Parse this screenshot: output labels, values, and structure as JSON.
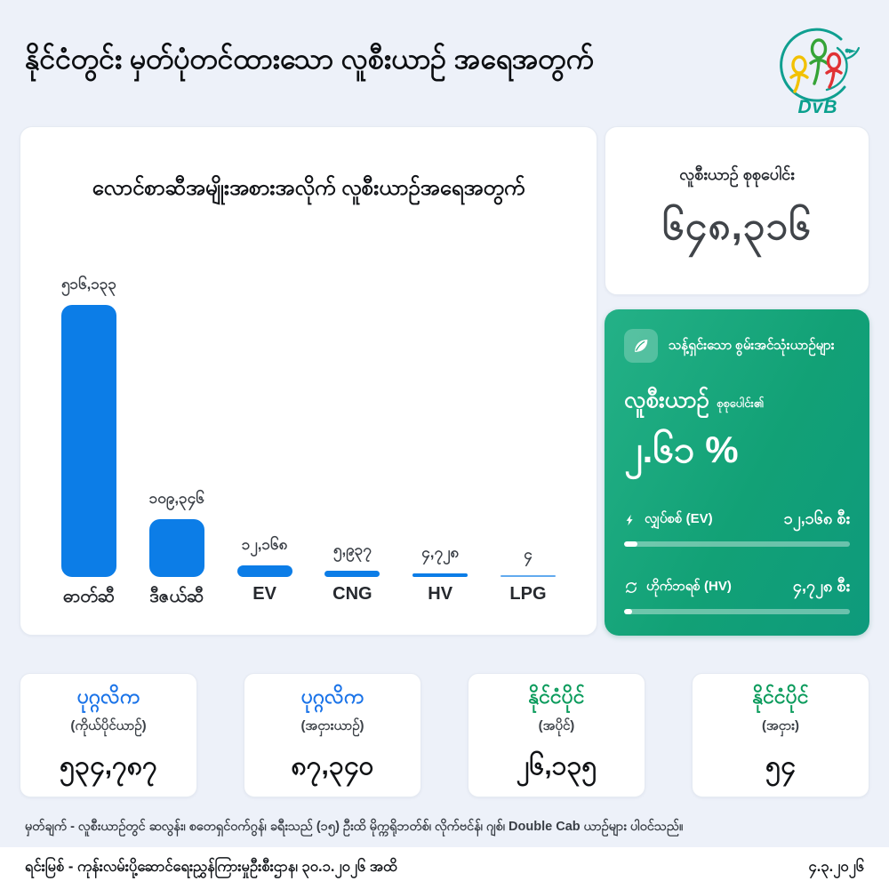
{
  "page": {
    "title": "နိုင်ငံတွင်း မှတ်ပုံတင်ထားသော လူစီးယာဉ် အရေအတွက်",
    "logo_text": "DvB",
    "background": "#edf1f9"
  },
  "chart_data": {
    "type": "bar",
    "title": "လောင်စာဆီအမျိုးအစားအလိုက် လူစီးယာဉ်အရေအတွက်",
    "categories": [
      "ဓာတ်ဆီ",
      "ဒီဇယ်ဆီ",
      "EV",
      "CNG",
      "HV",
      "LPG"
    ],
    "values": [
      516133,
      109346,
      12168,
      5937,
      4728,
      4
    ],
    "display_values": [
      "၅၁၆,၁၃၃",
      "၁၀၉,၃၄၆",
      "၁၂,၁၆၈",
      "၅,၉၃၇",
      "၄,၇၂၈",
      "၄"
    ],
    "bar_color": "#0c7de7",
    "ylim": [
      0,
      516133
    ],
    "grid": false,
    "legend": false,
    "value_labels": true
  },
  "total_card": {
    "label": "လူစီးယာဉ် စုစုပေါင်း",
    "value": "၆၄၈,၃၁၆"
  },
  "eco_card": {
    "header": "သန့်ရှင်းသော စွမ်းအင်သုံးယာဉ်များ",
    "subject": "လူစီးယာဉ်",
    "subject_suffix": "စုစုပေါင်း၏",
    "percent": "၂.၆၁ %",
    "accent_gradient": [
      "#24b187",
      "#0e9a7c"
    ],
    "rows": [
      {
        "icon": "lightning-icon",
        "label": "လျှပ်စစ် (EV)",
        "value": "၁၂,၁၆၈ စီး",
        "fill_pct": 6
      },
      {
        "icon": "hybrid-icon",
        "label": "ဟိုက်ဘရစ် (HV)",
        "value": "၄,၇၂၈ စီး",
        "fill_pct": 3.5
      }
    ]
  },
  "summary_cards": [
    {
      "label": "ပုဂ္ဂလိက",
      "sublabel": "(ကိုယ်ပိုင်ယာဉ်)",
      "value": "၅၃၄,၇၈၇",
      "label_color": "#1a73e8"
    },
    {
      "label": "ပုဂ္ဂလိက",
      "sublabel": "(အငှားယာဉ်)",
      "value": "၈၇,၃၄၀",
      "label_color": "#1a73e8"
    },
    {
      "label": "နိုင်ငံပိုင်",
      "sublabel": "(အပိုင်)",
      "value": "၂၆,၁၃၅",
      "label_color": "#0b9b5c"
    },
    {
      "label": "နိုင်ငံပိုင်",
      "sublabel": "(အငှား)",
      "value": "၅၄",
      "label_color": "#0b9b5c"
    }
  ],
  "footer": {
    "note": "မှတ်ချက် - လူစီးယာဉ်တွင် ဆလွန်း၊ စတေရှင်ဝက်ဂွန်၊ ခရီးသည် (၁၅) ဦးထိ မိုက္ကရိုဘတ်စ်၊ လိုက်ဗင်န်၊ ဂျစ်၊ Double Cab ယာဉ်များ ပါဝင်သည်။",
    "source": "ရင်းမြစ် - ကုန်းလမ်းပို့ဆောင်ရေးညွှန်ကြားမှုဦးစီးဌာန၊ ၃၀.၁.၂၀၂၆ အထိ",
    "date": "၄.၃.၂၀၂၆"
  }
}
